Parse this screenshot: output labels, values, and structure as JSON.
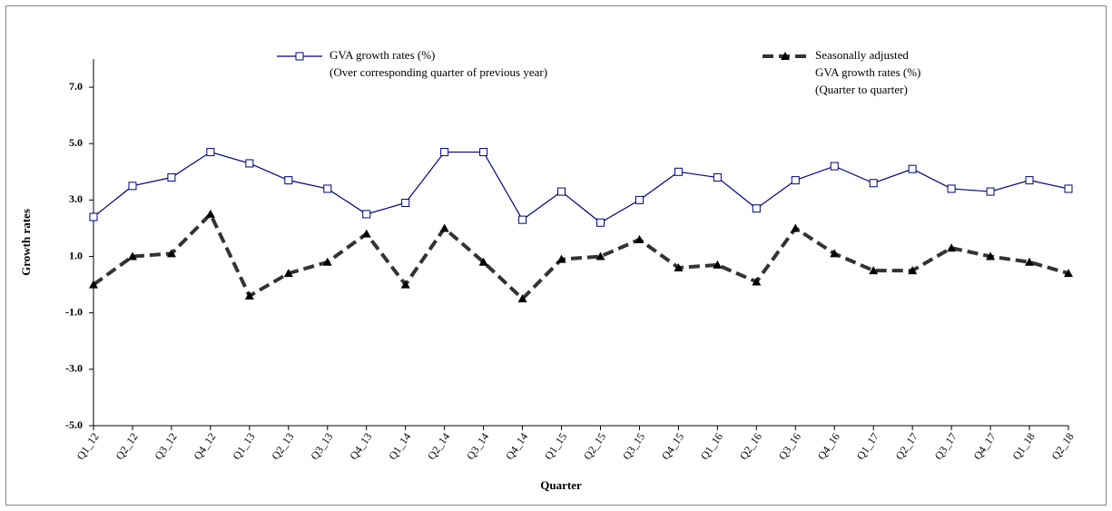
{
  "chart_data": {
    "type": "line",
    "x_label": "Quarter",
    "y_label": "Growth rates",
    "categories": [
      "Q1_12",
      "Q2_12",
      "Q3_12",
      "Q4_12",
      "Q1_13",
      "Q2_13",
      "Q3_13",
      "Q4_13",
      "Q1_14",
      "Q2_14",
      "Q3_14",
      "Q4_14",
      "Q1_15",
      "Q2_15",
      "Q3_15",
      "Q4_15",
      "Q1_16",
      "Q2_16",
      "Q3_16",
      "Q4_16",
      "Q1_17",
      "Q2_17",
      "Q3_17",
      "Q4_17",
      "Q1_18",
      "Q2_18"
    ],
    "series": [
      {
        "name": [
          "GVA growth rates (%)",
          "(Over corresponding quarter of previous year)"
        ],
        "color": "#000080",
        "marker": "square",
        "dash": false,
        "values": [
          2.4,
          3.5,
          3.8,
          4.7,
          4.3,
          3.7,
          3.4,
          2.5,
          2.9,
          4.7,
          4.7,
          2.3,
          3.3,
          2.2,
          3.0,
          4.0,
          3.8,
          2.7,
          3.7,
          4.2,
          3.6,
          4.1,
          3.4,
          3.3,
          3.7,
          3.4
        ]
      },
      {
        "name": [
          "Seasonally adjusted",
          "GVA growth rates (%)",
          "(Quarter to quarter)"
        ],
        "color": "#333333",
        "marker": "triangle",
        "dash": true,
        "values": [
          0.0,
          1.0,
          1.1,
          2.5,
          -0.4,
          0.4,
          0.8,
          1.8,
          0.0,
          2.0,
          0.8,
          -0.5,
          0.9,
          1.0,
          1.6,
          0.6,
          0.7,
          0.1,
          2.0,
          1.1,
          0.5,
          0.5,
          1.3,
          1.0,
          0.8,
          0.4
        ]
      }
    ],
    "ylim": [
      -5,
      8
    ],
    "yticks": [
      {
        "value": -5,
        "label": "-5.0"
      },
      {
        "value": -3,
        "label": "-3.0"
      },
      {
        "value": -1,
        "label": "-1.0"
      },
      {
        "value": 1,
        "label": "1.0"
      },
      {
        "value": 3,
        "label": "3.0"
      },
      {
        "value": 5,
        "label": "5.0"
      },
      {
        "value": 7,
        "label": "7.0"
      }
    ]
  }
}
